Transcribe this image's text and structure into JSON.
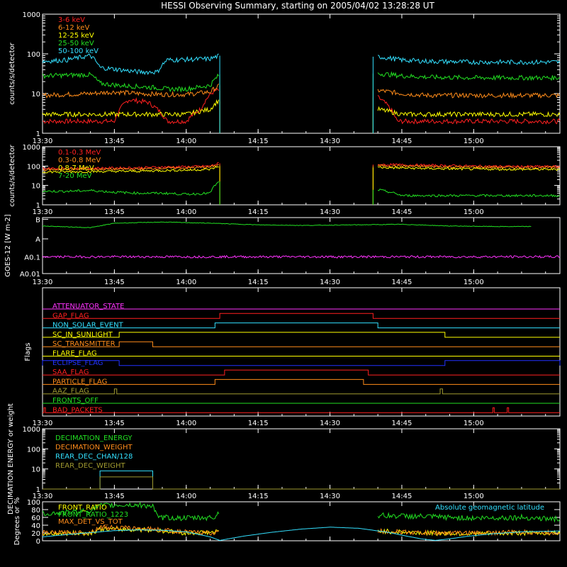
{
  "title": "HESSI Observing Summary, starting on 2005/04/02 13:28:28 UT",
  "colors": {
    "red": "#ff2020",
    "orange": "#ff8c1a",
    "yellow": "#ffff00",
    "green": "#22e022",
    "cyan": "#33e0ff",
    "magenta": "#ff33ff",
    "blue": "#2233ff",
    "olive": "#a09a30",
    "white": "#ffffff"
  },
  "time_axis": {
    "start_minutes": 810,
    "end_minutes": 918,
    "tick_labels": [
      "13:30",
      "13:45",
      "14:00",
      "14:15",
      "14:30",
      "14:45",
      "15:00"
    ],
    "tick_minutes": [
      810,
      825,
      840,
      855,
      870,
      885,
      900
    ]
  },
  "chart_data": [
    {
      "type": "line",
      "ylabel": "counts/s/detector",
      "yscale": "log",
      "ylim": [
        1,
        1000
      ],
      "ytick_labels": [
        "1",
        "10",
        "100",
        "1000"
      ],
      "legend_position": "top-left",
      "data_gap_minutes": [
        847,
        879
      ],
      "series": [
        {
          "name": "3-6 keV",
          "color": "red",
          "x": [
            810,
            820,
            822,
            825,
            828,
            832,
            836,
            840,
            843,
            846,
            847,
            879,
            880,
            882,
            884,
            886,
            890,
            900,
            910,
            918
          ],
          "y": [
            2,
            2,
            2,
            2,
            7,
            6,
            2,
            2,
            4,
            12,
            12,
            null,
            8,
            5,
            2,
            2,
            2,
            2,
            2,
            2
          ]
        },
        {
          "name": "6-12 keV",
          "color": "orange",
          "x": [
            810,
            815,
            820,
            825,
            830,
            835,
            840,
            845,
            847,
            879,
            880,
            885,
            890,
            900,
            910,
            918
          ],
          "y": [
            9,
            9.5,
            10,
            11,
            10,
            9.5,
            9.5,
            11,
            16,
            null,
            12,
            10,
            9,
            9,
            9,
            9
          ]
        },
        {
          "name": "12-25 keV",
          "color": "yellow",
          "x": [
            810,
            820,
            825,
            830,
            835,
            840,
            845,
            847,
            879,
            880,
            885,
            890,
            900,
            910,
            918
          ],
          "y": [
            3,
            3,
            3,
            3,
            3,
            3,
            4,
            7,
            null,
            4,
            3,
            3,
            3,
            3,
            3
          ]
        },
        {
          "name": "25-50 keV",
          "color": "green",
          "x": [
            810,
            815,
            820,
            822,
            826,
            830,
            834,
            836,
            840,
            845,
            847,
            879,
            880,
            885,
            890,
            900,
            910,
            918
          ],
          "y": [
            28,
            29,
            30,
            18,
            16,
            15,
            14,
            13,
            13,
            16,
            30,
            null,
            32,
            28,
            26,
            25,
            25,
            25
          ]
        },
        {
          "name": "50-100 keV",
          "color": "cyan",
          "x": [
            810,
            815,
            820,
            822,
            826,
            830,
            834,
            836,
            840,
            845,
            847,
            879,
            880,
            885,
            890,
            900,
            910,
            918
          ],
          "y": [
            65,
            70,
            90,
            45,
            40,
            35,
            35,
            70,
            72,
            75,
            90,
            null,
            85,
            70,
            65,
            62,
            62,
            62
          ]
        }
      ]
    },
    {
      "type": "line",
      "ylabel": "counts/s/detector",
      "yscale": "log",
      "ylim": [
        1,
        1000
      ],
      "ytick_labels": [
        "1",
        "10",
        "100",
        "1000"
      ],
      "legend_position": "top-left",
      "data_gap_minutes": [
        847,
        879
      ],
      "series": [
        {
          "name": "0.1-0.3 MeV",
          "color": "red",
          "x": [
            810,
            820,
            830,
            836,
            840,
            845,
            847,
            879,
            880,
            890,
            900,
            910,
            918
          ],
          "y": [
            75,
            78,
            82,
            90,
            92,
            100,
            140,
            null,
            120,
            110,
            100,
            95,
            95
          ]
        },
        {
          "name": "0.3-0.8 MeV",
          "color": "orange",
          "x": [
            810,
            820,
            830,
            836,
            840,
            845,
            847,
            879,
            880,
            890,
            900,
            910,
            918
          ],
          "y": [
            65,
            68,
            70,
            78,
            80,
            88,
            120,
            null,
            105,
            95,
            88,
            85,
            85
          ]
        },
        {
          "name": "0.8-7 MeV",
          "color": "yellow",
          "x": [
            810,
            820,
            830,
            836,
            840,
            845,
            847,
            879,
            880,
            890,
            900,
            910,
            918
          ],
          "y": [
            50,
            52,
            55,
            60,
            62,
            68,
            100,
            null,
            85,
            75,
            70,
            68,
            68
          ]
        },
        {
          "name": "7-20 MeV",
          "color": "green",
          "x": [
            810,
            815,
            820,
            825,
            830,
            835,
            840,
            845,
            847,
            879,
            880,
            885,
            890,
            900,
            910,
            918
          ],
          "y": [
            5,
            5,
            5.5,
            4.5,
            4,
            4,
            3.5,
            4,
            16,
            null,
            6,
            3,
            3,
            3,
            3,
            3
          ]
        }
      ]
    },
    {
      "type": "line",
      "ylabel": "GOES-12 [W m-2]",
      "yscale": "categorical",
      "ytick_labels": [
        "B",
        "A",
        "A0.1",
        "A0.01"
      ],
      "series": [
        {
          "name": "",
          "color": "green",
          "x": [
            810,
            820,
            825,
            835,
            845,
            855,
            865,
            875,
            885,
            895,
            905,
            912
          ],
          "y": [
            0.85,
            0.82,
            0.9,
            0.92,
            0.9,
            0.87,
            0.86,
            0.87,
            0.88,
            0.85,
            0.84,
            0.84
          ]
        },
        {
          "name": "",
          "color": "magenta",
          "x": [
            810,
            825,
            840,
            855,
            870,
            885,
            900,
            918
          ],
          "y": [
            0.3,
            0.3,
            0.3,
            0.3,
            0.3,
            0.3,
            0.3,
            0.3
          ]
        }
      ]
    },
    {
      "type": "table",
      "ylabel": "Flags",
      "flags": [
        {
          "name": "ATTENUATOR_STATE",
          "color": "magenta",
          "on": []
        },
        {
          "name": "GAP_FLAG",
          "color": "red",
          "on": [
            [
              847,
              879
            ]
          ]
        },
        {
          "name": "NON_SOLAR_EVENT",
          "color": "cyan",
          "on": [
            [
              846,
              880
            ]
          ]
        },
        {
          "name": "SC_IN_SUNLIGHT",
          "color": "yellow",
          "on": [
            [
              826,
              894
            ]
          ]
        },
        {
          "name": "SC_TRANSMITTER",
          "color": "orange",
          "on": [
            [
              826,
              833
            ]
          ]
        },
        {
          "name": "FLARE_FLAG",
          "color": "yellow",
          "on": []
        },
        {
          "name": "ECLIPSE_FLAG",
          "color": "blue",
          "on": [
            [
              810,
              826
            ],
            [
              894,
              918
            ]
          ]
        },
        {
          "name": "SAA_FLAG",
          "color": "red",
          "on": [
            [
              848,
              878
            ]
          ]
        },
        {
          "name": "PARTICLE_FLAG",
          "color": "orange",
          "on": [
            [
              846,
              877
            ]
          ]
        },
        {
          "name": "AAZ_FLAG",
          "color": "olive",
          "on": [
            [
              825,
              825.5
            ],
            [
              893,
              893.5
            ]
          ]
        },
        {
          "name": "FRONTS_OFF",
          "color": "green",
          "on": []
        },
        {
          "name": "BAD_PACKETS",
          "color": "red",
          "on": [
            [
              810.3,
              810.6
            ],
            [
              904,
              904.3
            ],
            [
              907,
              907.3
            ]
          ]
        }
      ]
    },
    {
      "type": "line",
      "ylabel": "DECIMATION ENERGY or weight",
      "yscale": "log",
      "ylim": [
        1,
        1000
      ],
      "ytick_labels": [
        "1",
        "10",
        "100",
        "1000"
      ],
      "legend_position": "top-left",
      "series": [
        {
          "name": "DECIMATION_ENERGY",
          "color": "green",
          "x": [
            810,
            918
          ],
          "y": [
            null,
            null
          ]
        },
        {
          "name": "DECIMATION_WEIGHT",
          "color": "orange",
          "x": [
            810,
            918
          ],
          "y": [
            null,
            null
          ]
        },
        {
          "name": "REAR_DEC_CHAN/128",
          "color": "cyan",
          "x": [
            810,
            822,
            822,
            833,
            833,
            918
          ],
          "y": [
            1,
            1,
            8,
            8,
            1,
            1
          ]
        },
        {
          "name": "REAR_DEC_WEIGHT",
          "color": "olive",
          "x": [
            810,
            822,
            822,
            833,
            833,
            918
          ],
          "y": [
            1,
            1,
            4,
            4,
            1,
            1
          ]
        }
      ]
    },
    {
      "type": "line",
      "ylabel": "Degrees or %",
      "ylim": [
        0,
        100
      ],
      "ytick_labels": [
        "0",
        "20",
        "40",
        "60",
        "80",
        "100"
      ],
      "legend_position": "top-left",
      "annotation": "Absolute geomagnetic latitude",
      "data_gap_minutes": [
        847,
        879
      ],
      "series": [
        {
          "name": "FRONT_RATIO",
          "color": "yellow",
          "x": [
            810,
            820,
            822,
            833,
            840,
            846,
            847,
            879,
            880,
            890,
            900,
            910,
            918
          ],
          "y": [
            18,
            20,
            30,
            28,
            20,
            22,
            25,
            null,
            25,
            20,
            18,
            20,
            20
          ]
        },
        {
          "name": "FRONT_RATIO_1223",
          "color": "green",
          "x": [
            810,
            815,
            820,
            822,
            828,
            833,
            834,
            840,
            846,
            847,
            879,
            880,
            890,
            900,
            910,
            918
          ],
          "y": [
            70,
            72,
            78,
            90,
            92,
            90,
            60,
            58,
            60,
            78,
            null,
            65,
            62,
            58,
            60,
            55
          ]
        },
        {
          "name": "MAX_DET_VS_TOT",
          "color": "orange",
          "x": [
            810,
            820,
            822,
            833,
            840,
            846,
            847,
            879,
            880,
            890,
            900,
            910,
            918
          ],
          "y": [
            20,
            22,
            35,
            30,
            22,
            20,
            22,
            null,
            25,
            20,
            20,
            22,
            20
          ]
        },
        {
          "name": "",
          "color": "cyan",
          "x": [
            810,
            815,
            820,
            825,
            830,
            835,
            840,
            845,
            847,
            852,
            858,
            864,
            870,
            876,
            882,
            886,
            889,
            892,
            895,
            899,
            904,
            910,
            918
          ],
          "y": [
            10,
            16,
            21,
            26,
            28,
            27,
            23,
            10,
            1,
            12,
            22,
            30,
            35,
            32,
            22,
            12,
            5,
            1,
            5,
            12,
            18,
            23,
            25
          ]
        }
      ]
    }
  ]
}
